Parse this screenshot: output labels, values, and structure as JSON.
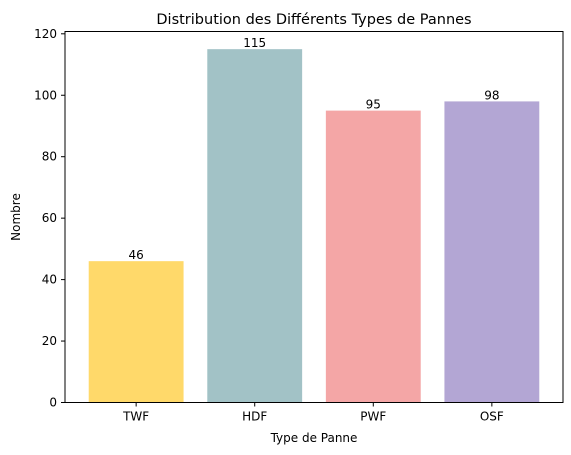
{
  "chart_data": {
    "type": "bar",
    "title": "Distribution des Différents Types de Pannes",
    "xlabel": "Type de Panne",
    "ylabel": "Nombre",
    "categories": [
      "TWF",
      "HDF",
      "PWF",
      "OSF"
    ],
    "values": [
      46,
      115,
      95,
      98
    ],
    "colors": [
      "#ffd96a",
      "#a2c2c6",
      "#f4a6a6",
      "#b3a6d4"
    ],
    "ylim": [
      0,
      120.75
    ],
    "yticks": [
      0,
      20,
      40,
      60,
      80,
      100,
      120
    ],
    "grid": false,
    "legend": "none"
  }
}
